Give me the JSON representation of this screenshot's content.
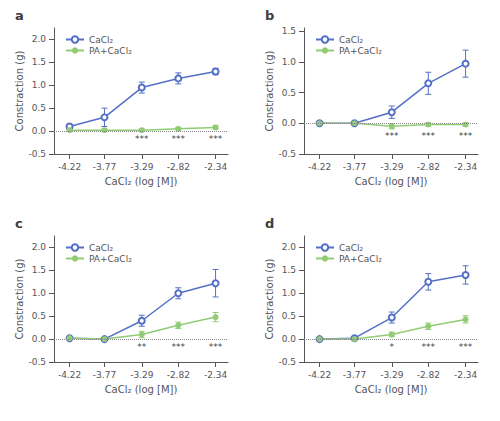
{
  "chart_data": [
    {
      "type": "line",
      "title": "a",
      "x_label": "CaCl₂ (log [M])",
      "y_label": "Constraction (g)",
      "x": [
        -4.22,
        -3.77,
        -3.29,
        -2.82,
        -2.34
      ],
      "xlim": [
        -4.42,
        -2.18
      ],
      "xticks": [
        -4.22,
        -3.77,
        -3.29,
        -2.82,
        -2.34
      ],
      "ylim": [
        -0.5,
        2.25
      ],
      "yticks": [
        -0.5,
        {
          "value": 0,
          "label": "0.0"
        },
        0.5,
        {
          "value": 1,
          "label": "1.0"
        },
        1.5,
        {
          "value": 2,
          "label": "2.0"
        }
      ],
      "grid": false,
      "legend": "upper left",
      "hline": 0,
      "series": [
        {
          "name": "CaCl₂",
          "marker": "open circle",
          "values": [
            0.1,
            0.3,
            0.95,
            1.15,
            1.3
          ],
          "errors": [
            0.05,
            0.2,
            0.12,
            0.12,
            0.07
          ]
        },
        {
          "name": "PA+CaCl₂",
          "marker": "filled circle",
          "values": [
            0.02,
            0.02,
            0.02,
            0.05,
            0.08
          ],
          "errors": [
            0.03,
            0.03,
            0.03,
            0.03,
            0.04
          ]
        }
      ],
      "annotations": [
        {
          "x": -3.29,
          "y": -0.17,
          "text": "***"
        },
        {
          "x": -2.82,
          "y": -0.17,
          "text": "***"
        },
        {
          "x": -2.34,
          "y": -0.17,
          "text": "***"
        }
      ]
    },
    {
      "type": "line",
      "title": "b",
      "x_label": "CaCl₂ (log [M])",
      "y_label": "Constraction (g)",
      "x": [
        -4.22,
        -3.77,
        -3.29,
        -2.82,
        -2.34
      ],
      "xlim": [
        -4.42,
        -2.18
      ],
      "xticks": [
        -4.22,
        -3.77,
        -3.29,
        -2.82,
        -2.34
      ],
      "ylim": [
        -0.5,
        1.55
      ],
      "yticks": [
        -0.5,
        {
          "value": 0,
          "label": "0.0"
        },
        0.5,
        {
          "value": 1,
          "label": "1.0"
        },
        1.5
      ],
      "grid": false,
      "legend": "upper left",
      "hline": 0,
      "series": [
        {
          "name": "CaCl₂",
          "marker": "open circle",
          "values": [
            0.0,
            0.0,
            0.18,
            0.65,
            0.97
          ],
          "errors": [
            0.02,
            0.02,
            0.1,
            0.18,
            0.22
          ]
        },
        {
          "name": "PA+CaCl₂",
          "marker": "filled circle",
          "values": [
            0.0,
            0.0,
            -0.05,
            -0.02,
            -0.02
          ],
          "errors": [
            0.02,
            0.02,
            0.04,
            0.03,
            0.03
          ]
        }
      ],
      "annotations": [
        {
          "x": -3.29,
          "y": -0.2,
          "text": "***"
        },
        {
          "x": -2.82,
          "y": -0.2,
          "text": "***"
        },
        {
          "x": -2.34,
          "y": -0.2,
          "text": "***"
        }
      ]
    },
    {
      "type": "line",
      "title": "c",
      "x_label": "CaCl₂ (log [M])",
      "y_label": "Constraction (g)",
      "x": [
        -4.22,
        -3.77,
        -3.29,
        -2.82,
        -2.34
      ],
      "xlim": [
        -4.42,
        -2.18
      ],
      "xticks": [
        -4.22,
        -3.77,
        -3.29,
        -2.82,
        -2.34
      ],
      "ylim": [
        -0.5,
        2.25
      ],
      "yticks": [
        -0.5,
        {
          "value": 0,
          "label": "0.0"
        },
        0.5,
        {
          "value": 1,
          "label": "1.0"
        },
        1.5,
        {
          "value": 2,
          "label": "2.0"
        }
      ],
      "grid": false,
      "legend": "upper left",
      "hline": 0,
      "series": [
        {
          "name": "CaCl₂",
          "marker": "open circle",
          "values": [
            0.02,
            0.0,
            0.4,
            1.0,
            1.22
          ],
          "errors": [
            0.03,
            0.03,
            0.12,
            0.12,
            0.3
          ]
        },
        {
          "name": "PA+CaCl₂",
          "marker": "filled circle",
          "values": [
            0.02,
            0.0,
            0.1,
            0.3,
            0.48
          ],
          "errors": [
            0.03,
            0.03,
            0.07,
            0.07,
            0.1
          ]
        }
      ],
      "annotations": [
        {
          "x": -3.29,
          "y": -0.17,
          "text": "**"
        },
        {
          "x": -2.82,
          "y": -0.17,
          "text": "***"
        },
        {
          "x": -2.34,
          "y": -0.17,
          "text": "***"
        }
      ]
    },
    {
      "type": "line",
      "title": "d",
      "x_label": "CaCl₂ (log [M])",
      "y_label": "Constraction (g)",
      "x": [
        -4.22,
        -3.77,
        -3.29,
        -2.82,
        -2.34
      ],
      "xlim": [
        -4.42,
        -2.18
      ],
      "xticks": [
        -4.22,
        -3.77,
        -3.29,
        -2.82,
        -2.34
      ],
      "ylim": [
        -0.5,
        2.25
      ],
      "yticks": [
        -0.5,
        {
          "value": 0,
          "label": "0.0"
        },
        0.5,
        {
          "value": 1,
          "label": "1.0"
        },
        1.5,
        {
          "value": 2,
          "label": "2.0"
        }
      ],
      "grid": false,
      "legend": "upper left",
      "hline": 0,
      "series": [
        {
          "name": "CaCl₂",
          "marker": "open circle",
          "values": [
            0.0,
            0.02,
            0.47,
            1.25,
            1.4
          ],
          "errors": [
            0.02,
            0.03,
            0.12,
            0.18,
            0.2
          ]
        },
        {
          "name": "PA+CaCl₂",
          "marker": "filled circle",
          "values": [
            0.0,
            0.0,
            0.1,
            0.28,
            0.43
          ],
          "errors": [
            0.02,
            0.02,
            0.05,
            0.07,
            0.08
          ]
        }
      ],
      "annotations": [
        {
          "x": -3.29,
          "y": -0.17,
          "text": "*"
        },
        {
          "x": -2.82,
          "y": -0.17,
          "text": "***"
        },
        {
          "x": -2.34,
          "y": -0.17,
          "text": "***"
        }
      ]
    }
  ]
}
